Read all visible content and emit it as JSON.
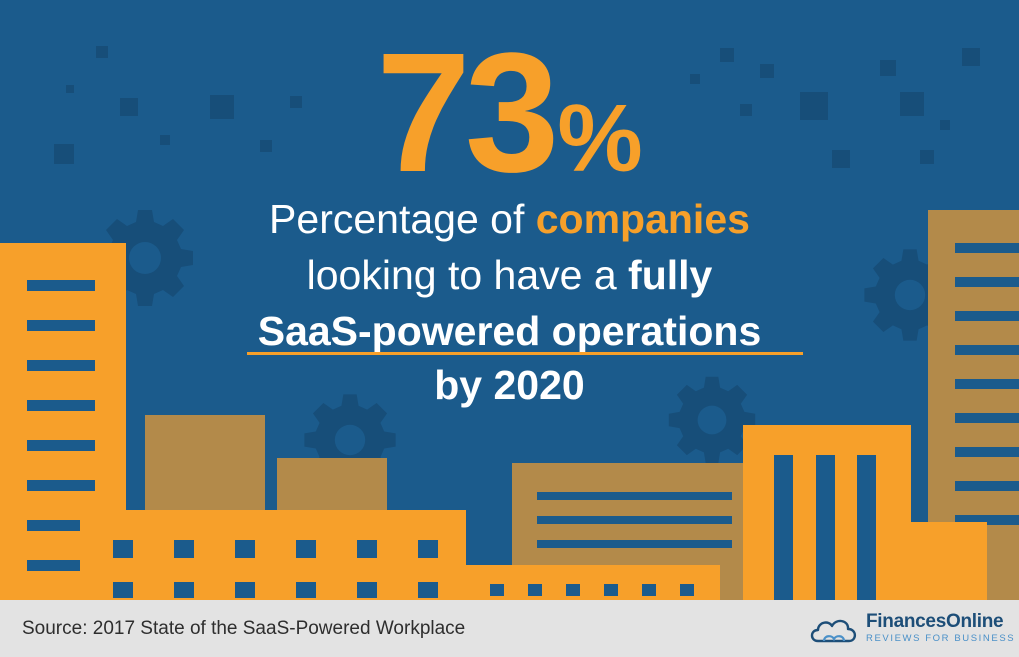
{
  "stat": {
    "number": "73",
    "percent": "%"
  },
  "headline": {
    "line1_prefix": "Percentage of ",
    "line1_highlight": "companies",
    "line2_prefix": "looking to have a ",
    "line2_bold": "fully",
    "line3": "SaaS-powered operations",
    "line4": "by 2020"
  },
  "footer": {
    "source": "Source:  2017 State of the SaaS-Powered Workplace",
    "brand": "FinancesOnline",
    "tagline": "REVIEWS FOR BUSINESS"
  },
  "colors": {
    "background": "#1B5B8C",
    "accent_orange": "#F7A02A",
    "muted_tan": "#B38A4A",
    "footer_bg": "#E3E3E3"
  },
  "icons": [
    "gear-icon",
    "cloud-logo-icon"
  ]
}
